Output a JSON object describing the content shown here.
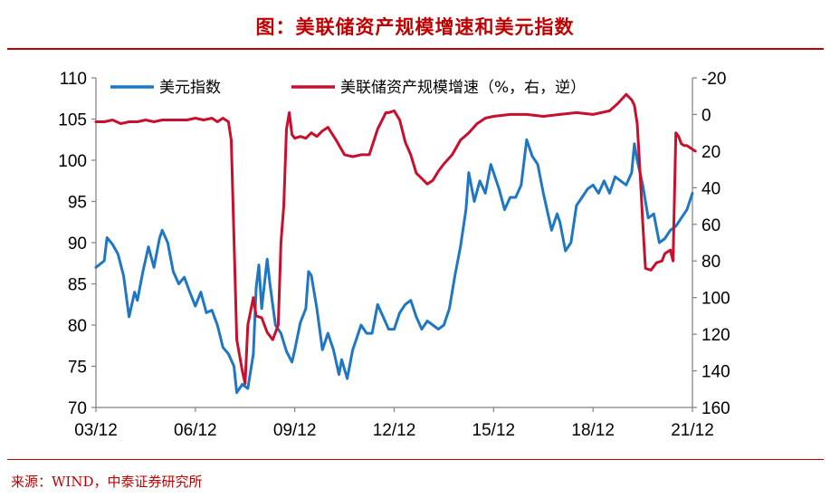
{
  "header": {
    "title": "图：美联储资产规模增速和美元指数"
  },
  "footer": {
    "source": "来源：WIND，中泰证券研究所"
  },
  "chart_data": {
    "type": "line",
    "title": "图：美联储资产规模增速和美元指数",
    "x_tick_labels": [
      "03/12",
      "06/12",
      "09/12",
      "12/12",
      "15/12",
      "18/12",
      "21/12"
    ],
    "x_range": [
      "2003-12",
      "2021-12"
    ],
    "left_axis": {
      "range": [
        70,
        110
      ],
      "ticks": [
        70,
        75,
        80,
        85,
        90,
        95,
        100,
        105,
        110
      ]
    },
    "right_axis": {
      "range": [
        -20,
        160
      ],
      "inverted": true,
      "ticks": [
        -20,
        0,
        20,
        40,
        60,
        80,
        100,
        120,
        140,
        160
      ]
    },
    "legend_position": "top",
    "grid": false,
    "series": [
      {
        "name": "美元指数",
        "axis": "left",
        "color": "#1f77c4",
        "points": [
          [
            "2003-12",
            87.0
          ],
          [
            "2004-03",
            87.8
          ],
          [
            "2004-04",
            90.6
          ],
          [
            "2004-06",
            89.8
          ],
          [
            "2004-08",
            88.6
          ],
          [
            "2004-10",
            86.0
          ],
          [
            "2004-12",
            81.0
          ],
          [
            "2005-02",
            84.0
          ],
          [
            "2005-03",
            83.0
          ],
          [
            "2005-05",
            86.5
          ],
          [
            "2005-07",
            89.5
          ],
          [
            "2005-09",
            87.0
          ],
          [
            "2005-11",
            90.5
          ],
          [
            "2005-12",
            91.5
          ],
          [
            "2006-02",
            90.0
          ],
          [
            "2006-04",
            86.5
          ],
          [
            "2006-06",
            85.0
          ],
          [
            "2006-08",
            85.8
          ],
          [
            "2006-10",
            84.0
          ],
          [
            "2006-12",
            82.3
          ],
          [
            "2007-02",
            84.0
          ],
          [
            "2007-04",
            81.5
          ],
          [
            "2007-06",
            81.8
          ],
          [
            "2007-08",
            80.0
          ],
          [
            "2007-10",
            77.3
          ],
          [
            "2007-12",
            76.5
          ],
          [
            "2008-02",
            75.0
          ],
          [
            "2008-03",
            71.8
          ],
          [
            "2008-05",
            72.8
          ],
          [
            "2008-07",
            72.3
          ],
          [
            "2008-09",
            76.5
          ],
          [
            "2008-10",
            84.5
          ],
          [
            "2008-11",
            87.3
          ],
          [
            "2008-12",
            82.0
          ],
          [
            "2009-02",
            88.0
          ],
          [
            "2009-03",
            85.0
          ],
          [
            "2009-05",
            80.0
          ],
          [
            "2009-07",
            79.0
          ],
          [
            "2009-09",
            76.8
          ],
          [
            "2009-11",
            75.5
          ],
          [
            "2009-12",
            77.0
          ],
          [
            "2010-02",
            80.3
          ],
          [
            "2010-04",
            82.0
          ],
          [
            "2010-05",
            86.5
          ],
          [
            "2010-06",
            86.0
          ],
          [
            "2010-08",
            82.0
          ],
          [
            "2010-10",
            77.0
          ],
          [
            "2010-12",
            79.0
          ],
          [
            "2011-02",
            77.0
          ],
          [
            "2011-04",
            74.0
          ],
          [
            "2011-05",
            75.8
          ],
          [
            "2011-07",
            73.5
          ],
          [
            "2011-09",
            77.0
          ],
          [
            "2011-10",
            78.0
          ],
          [
            "2011-12",
            80.0
          ],
          [
            "2012-02",
            79.0
          ],
          [
            "2012-04",
            79.0
          ],
          [
            "2012-06",
            82.5
          ],
          [
            "2012-08",
            81.0
          ],
          [
            "2012-10",
            79.5
          ],
          [
            "2012-12",
            79.5
          ],
          [
            "2013-02",
            81.5
          ],
          [
            "2013-04",
            82.5
          ],
          [
            "2013-06",
            83.0
          ],
          [
            "2013-08",
            81.0
          ],
          [
            "2013-10",
            79.5
          ],
          [
            "2013-12",
            80.5
          ],
          [
            "2014-02",
            80.0
          ],
          [
            "2014-04",
            79.5
          ],
          [
            "2014-06",
            80.0
          ],
          [
            "2014-08",
            82.0
          ],
          [
            "2014-10",
            86.0
          ],
          [
            "2014-12",
            89.5
          ],
          [
            "2015-02",
            94.0
          ],
          [
            "2015-03",
            98.5
          ],
          [
            "2015-05",
            95.0
          ],
          [
            "2015-07",
            97.5
          ],
          [
            "2015-09",
            96.0
          ],
          [
            "2015-11",
            99.5
          ],
          [
            "2015-12",
            98.5
          ],
          [
            "2016-02",
            96.5
          ],
          [
            "2016-04",
            94.0
          ],
          [
            "2016-06",
            95.5
          ],
          [
            "2016-08",
            95.5
          ],
          [
            "2016-10",
            97.0
          ],
          [
            "2016-12",
            102.5
          ],
          [
            "2017-02",
            100.5
          ],
          [
            "2017-04",
            99.5
          ],
          [
            "2017-06",
            96.0
          ],
          [
            "2017-08",
            93.0
          ],
          [
            "2017-09",
            91.5
          ],
          [
            "2017-11",
            93.5
          ],
          [
            "2017-12",
            92.5
          ],
          [
            "2018-02",
            89.0
          ],
          [
            "2018-04",
            90.0
          ],
          [
            "2018-06",
            94.5
          ],
          [
            "2018-08",
            95.5
          ],
          [
            "2018-10",
            96.5
          ],
          [
            "2018-12",
            97.0
          ],
          [
            "2019-02",
            96.0
          ],
          [
            "2019-04",
            97.5
          ],
          [
            "2019-06",
            96.0
          ],
          [
            "2019-08",
            98.0
          ],
          [
            "2019-10",
            97.5
          ],
          [
            "2019-12",
            97.0
          ],
          [
            "2020-02",
            98.5
          ],
          [
            "2020-03",
            102.0
          ],
          [
            "2020-04",
            100.0
          ],
          [
            "2020-06",
            97.0
          ],
          [
            "2020-08",
            93.0
          ],
          [
            "2020-10",
            93.5
          ],
          [
            "2020-12",
            90.0
          ],
          [
            "2021-02",
            90.5
          ],
          [
            "2021-04",
            91.5
          ],
          [
            "2021-06",
            92.0
          ],
          [
            "2021-08",
            93.0
          ],
          [
            "2021-10",
            94.0
          ],
          [
            "2021-12",
            96.0
          ]
        ]
      },
      {
        "name": "美联储资产规模增速（%，右，逆）",
        "axis": "right",
        "color": "#c8102e",
        "points": [
          [
            "2003-12",
            4
          ],
          [
            "2004-03",
            4
          ],
          [
            "2004-06",
            3
          ],
          [
            "2004-09",
            5
          ],
          [
            "2004-12",
            4
          ],
          [
            "2005-03",
            4
          ],
          [
            "2005-06",
            3
          ],
          [
            "2005-09",
            4
          ],
          [
            "2005-12",
            3
          ],
          [
            "2006-03",
            3
          ],
          [
            "2006-06",
            3
          ],
          [
            "2006-09",
            3
          ],
          [
            "2006-12",
            2
          ],
          [
            "2007-03",
            3
          ],
          [
            "2007-06",
            2
          ],
          [
            "2007-08",
            4
          ],
          [
            "2007-10",
            2
          ],
          [
            "2007-12",
            4
          ],
          [
            "2008-01",
            14
          ],
          [
            "2008-03",
            123
          ],
          [
            "2008-05",
            140
          ],
          [
            "2008-06",
            147
          ],
          [
            "2008-07",
            115
          ],
          [
            "2008-09",
            100
          ],
          [
            "2008-10",
            110
          ],
          [
            "2008-12",
            111
          ],
          [
            "2009-02",
            119
          ],
          [
            "2009-04",
            123
          ],
          [
            "2009-05",
            119
          ],
          [
            "2009-06",
            115
          ],
          [
            "2009-07",
            70
          ],
          [
            "2009-08",
            50
          ],
          [
            "2009-09",
            8
          ],
          [
            "2009-10",
            -1
          ],
          [
            "2009-11",
            11
          ],
          [
            "2009-12",
            13
          ],
          [
            "2010-02",
            12
          ],
          [
            "2010-04",
            13
          ],
          [
            "2010-06",
            10
          ],
          [
            "2010-08",
            12
          ],
          [
            "2010-10",
            9
          ],
          [
            "2010-12",
            7
          ],
          [
            "2011-03",
            14
          ],
          [
            "2011-06",
            22
          ],
          [
            "2011-09",
            23
          ],
          [
            "2011-12",
            22
          ],
          [
            "2012-03",
            22
          ],
          [
            "2012-06",
            8
          ],
          [
            "2012-09",
            -1
          ],
          [
            "2012-10",
            -1
          ],
          [
            "2012-12",
            -2
          ],
          [
            "2013-02",
            3
          ],
          [
            "2013-04",
            15
          ],
          [
            "2013-06",
            22
          ],
          [
            "2013-08",
            32
          ],
          [
            "2013-10",
            35
          ],
          [
            "2013-12",
            38
          ],
          [
            "2014-02",
            36
          ],
          [
            "2014-04",
            31
          ],
          [
            "2014-06",
            27
          ],
          [
            "2014-09",
            22
          ],
          [
            "2014-12",
            14
          ],
          [
            "2015-03",
            10
          ],
          [
            "2015-06",
            5
          ],
          [
            "2015-09",
            2
          ],
          [
            "2015-12",
            1
          ],
          [
            "2016-06",
            0
          ],
          [
            "2016-12",
            0
          ],
          [
            "2017-06",
            1
          ],
          [
            "2017-12",
            0
          ],
          [
            "2018-06",
            -1
          ],
          [
            "2018-12",
            0
          ],
          [
            "2019-03",
            -1
          ],
          [
            "2019-06",
            -2
          ],
          [
            "2019-09",
            -6
          ],
          [
            "2019-12",
            -11
          ],
          [
            "2020-02",
            -8
          ],
          [
            "2020-03",
            -5
          ],
          [
            "2020-04",
            5
          ],
          [
            "2020-05",
            30
          ],
          [
            "2020-06",
            59
          ],
          [
            "2020-07",
            84
          ],
          [
            "2020-09",
            85
          ],
          [
            "2020-11",
            81
          ],
          [
            "2021-01",
            80
          ],
          [
            "2021-02",
            76
          ],
          [
            "2021-04",
            74
          ],
          [
            "2021-05",
            80
          ],
          [
            "2021-06",
            10
          ],
          [
            "2021-07",
            12
          ],
          [
            "2021-08",
            16
          ],
          [
            "2021-09",
            17
          ],
          [
            "2021-10",
            17
          ],
          [
            "2021-11",
            18
          ],
          [
            "2021-12",
            19
          ],
          [
            "2022-01",
            20
          ]
        ]
      }
    ]
  }
}
